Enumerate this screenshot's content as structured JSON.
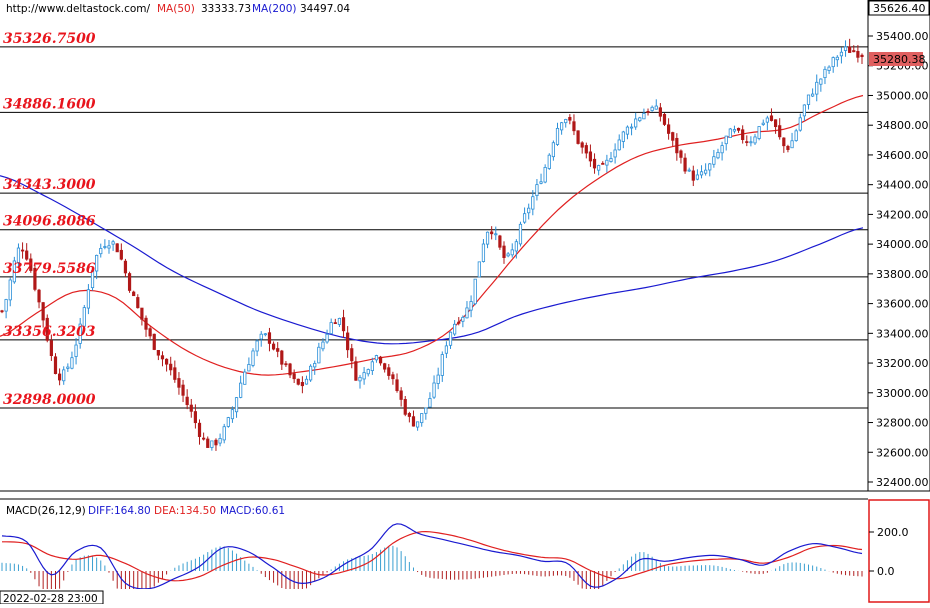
{
  "header": {
    "source": "http://www.deltastock.com/",
    "ma50_label": "MA(50)",
    "ma50_value": "33333.73",
    "ma200_label": "MA(200)",
    "ma200_value": "34497.04",
    "high_label": "35626.40",
    "last_price": "35280.38"
  },
  "macd": {
    "title": "MACD(26,12,9)",
    "diff": "DIFF:164.80",
    "dea": "DEA:134.50",
    "macd": "MACD:60.61",
    "ticks": [
      "200.0",
      "0.0"
    ]
  },
  "footer": {
    "timestamp": "2022-02-28 23:00"
  },
  "levels": [
    {
      "label": "35326.7500",
      "value": 35326.75
    },
    {
      "label": "34886.1600",
      "value": 34886.16
    },
    {
      "label": "34343.3000",
      "value": 34343.3
    },
    {
      "label": "34096.8086",
      "value": 34096.8086
    },
    {
      "label": "33779.5586",
      "value": 33779.5586
    },
    {
      "label": "33356.3203",
      "value": 33356.3203
    },
    {
      "label": "32898.0000",
      "value": 32898.0
    }
  ],
  "colors": {
    "up_candle": "#2a8fd8",
    "down_candle": "#b01818",
    "ma50": "#e02020",
    "ma200": "#1a1ad0",
    "macd_diff": "#1a1ad0",
    "macd_dea": "#e02020",
    "last_price_box": "#e06060",
    "level_label": "#e8141c"
  },
  "chart_data": {
    "type": "candlestick",
    "symbol_source": "http://www.deltastock.com/",
    "y_ticks": [
      35400,
      35200,
      35000,
      34800,
      34600,
      34400,
      34200,
      34000,
      33800,
      33600,
      33400,
      33200,
      33000,
      32800,
      32600,
      32400
    ],
    "ylim": [
      32320,
      35620
    ],
    "last_price": 35280.38,
    "price_path": [
      33550,
      33980,
      33600,
      33120,
      33350,
      33900,
      34000,
      33650,
      33350,
      33150,
      32900,
      32650,
      32780,
      33150,
      33380,
      33200,
      33050,
      33300,
      33500,
      33100,
      33250,
      33050,
      32800,
      33000,
      33420,
      33600,
      34100,
      33900,
      34200,
      34500,
      34850,
      34650,
      34500,
      34700,
      34850,
      34900,
      34650,
      34450,
      34550,
      34750,
      34700,
      34850,
      34650,
      34950,
      35150,
      35300,
      35280
    ],
    "ma50_path": [
      33380,
      33540,
      33680,
      33650,
      33450,
      33280,
      33170,
      33120,
      33140,
      33180,
      33230,
      33280,
      33420,
      33700,
      34000,
      34260,
      34450,
      34590,
      34660,
      34700,
      34750,
      34780,
      34900,
      35000
    ],
    "ma200_path": [
      34460,
      34330,
      34170,
      34000,
      33820,
      33680,
      33550,
      33450,
      33370,
      33330,
      33350,
      33400,
      33520,
      33600,
      33660,
      33710,
      33770,
      33820,
      33890,
      34000,
      34110
    ],
    "macd_ticks": [
      200,
      0
    ],
    "macd_diff_path": [
      180,
      150,
      -20,
      100,
      120,
      -60,
      -90,
      -40,
      20,
      120,
      100,
      20,
      -60,
      -40,
      40,
      110,
      240,
      190,
      160,
      130,
      100,
      80,
      50,
      40,
      -80,
      -40,
      60,
      50,
      70,
      80,
      60,
      30,
      100,
      140,
      120,
      90
    ],
    "macd_dea_path": [
      150,
      140,
      80,
      60,
      80,
      40,
      -20,
      -50,
      -30,
      30,
      70,
      60,
      20,
      -20,
      0,
      50,
      150,
      200,
      190,
      160,
      120,
      90,
      70,
      60,
      0,
      -40,
      -10,
      30,
      50,
      60,
      60,
      40,
      70,
      120,
      130,
      110
    ]
  }
}
